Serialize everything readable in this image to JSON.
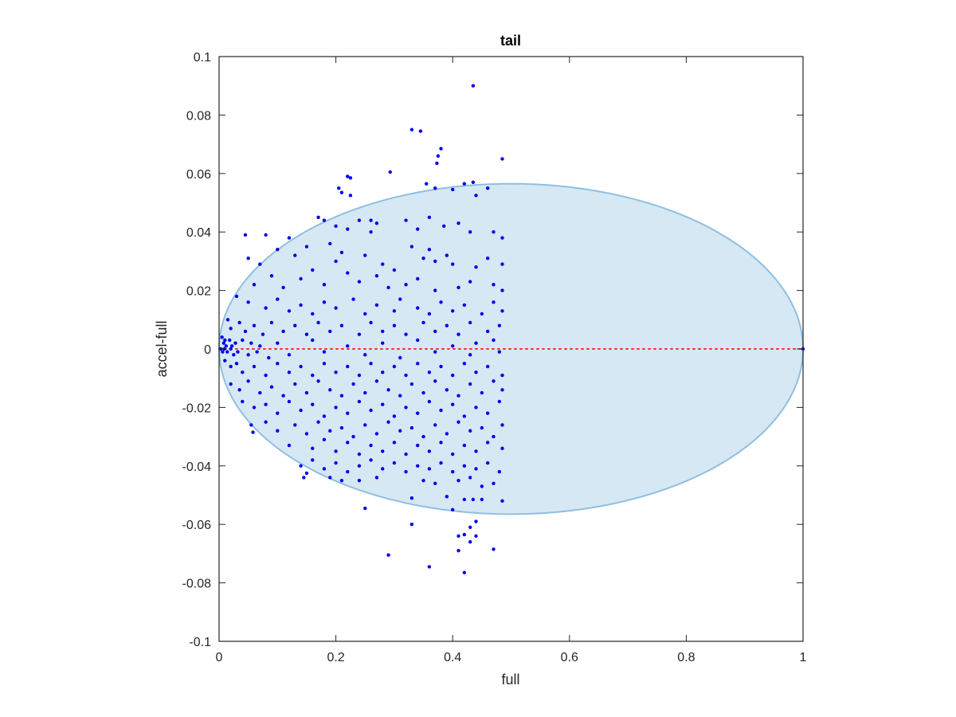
{
  "chart_data": {
    "type": "scatter",
    "title": "tail",
    "xlabel": "full",
    "ylabel": "accel-full",
    "xlim": [
      0,
      1
    ],
    "ylim": [
      -0.1,
      0.1
    ],
    "xticks": [
      0,
      0.2,
      0.4,
      0.6,
      0.8,
      1
    ],
    "xtick_labels": [
      "0",
      "0.2",
      "0.4",
      "0.6",
      "0.8",
      "1"
    ],
    "yticks": [
      -0.1,
      -0.08,
      -0.06,
      -0.04,
      -0.02,
      0,
      0.02,
      0.04,
      0.06,
      0.08,
      0.1
    ],
    "ytick_labels": [
      "-0.1",
      "-0.08",
      "-0.06",
      "-0.04",
      "-0.02",
      "0",
      "0.02",
      "0.04",
      "0.06",
      "0.08",
      "0.1"
    ],
    "grid": false,
    "colors": {
      "points": "#0000ee",
      "ellipse_fill": "#d6e8f4",
      "ellipse_edge": "#8ec0e0",
      "zero_line": "#ff2a2a",
      "axes": "#262626"
    },
    "ellipse": {
      "center": [
        0.5,
        0
      ],
      "x_radius": 0.5,
      "y_radius": 0.0565
    },
    "reference_line": {
      "y": 0,
      "x_range": [
        0,
        1
      ],
      "style": "dotted"
    },
    "points": [
      [
        0.435,
        0.09
      ],
      [
        0.33,
        0.075
      ],
      [
        0.345,
        0.0745
      ],
      [
        0.38,
        0.0685
      ],
      [
        0.375,
        0.066
      ],
      [
        0.373,
        0.0635
      ],
      [
        0.485,
        0.065
      ],
      [
        0.293,
        0.0605
      ],
      [
        0.22,
        0.059
      ],
      [
        0.225,
        0.0585
      ],
      [
        0.205,
        0.055
      ],
      [
        0.21,
        0.0535
      ],
      [
        0.225,
        0.0525
      ],
      [
        0.355,
        0.0565
      ],
      [
        0.42,
        0.0565
      ],
      [
        0.435,
        0.057
      ],
      [
        0.37,
        0.055
      ],
      [
        0.4,
        0.0545
      ],
      [
        0.46,
        0.055
      ],
      [
        0.44,
        0.0525
      ],
      [
        0.17,
        0.045
      ],
      [
        0.18,
        0.044
      ],
      [
        0.24,
        0.044
      ],
      [
        0.26,
        0.044
      ],
      [
        0.27,
        0.043
      ],
      [
        0.2,
        0.042
      ],
      [
        0.22,
        0.041
      ],
      [
        0.26,
        0.04
      ],
      [
        0.32,
        0.044
      ],
      [
        0.34,
        0.041
      ],
      [
        0.36,
        0.045
      ],
      [
        0.385,
        0.042
      ],
      [
        0.41,
        0.043
      ],
      [
        0.43,
        0.04
      ],
      [
        0.47,
        0.04
      ],
      [
        0.485,
        0.038
      ],
      [
        0.045,
        0.039
      ],
      [
        0.08,
        0.039
      ],
      [
        0.12,
        0.038
      ],
      [
        0.15,
        0.035
      ],
      [
        0.1,
        0.034
      ],
      [
        0.19,
        0.036
      ],
      [
        0.21,
        0.033
      ],
      [
        0.25,
        0.032
      ],
      [
        0.05,
        0.031
      ],
      [
        0.07,
        0.029
      ],
      [
        0.13,
        0.032
      ],
      [
        0.16,
        0.027
      ],
      [
        0.2,
        0.03
      ],
      [
        0.28,
        0.029
      ],
      [
        0.3,
        0.027
      ],
      [
        0.35,
        0.031
      ],
      [
        0.37,
        0.03
      ],
      [
        0.4,
        0.029
      ],
      [
        0.44,
        0.028
      ],
      [
        0.46,
        0.031
      ],
      [
        0.485,
        0.029
      ],
      [
        0.39,
        0.032
      ],
      [
        0.36,
        0.034
      ],
      [
        0.33,
        0.035
      ],
      [
        0.06,
        0.022
      ],
      [
        0.09,
        0.025
      ],
      [
        0.11,
        0.021
      ],
      [
        0.14,
        0.024
      ],
      [
        0.18,
        0.022
      ],
      [
        0.22,
        0.026
      ],
      [
        0.24,
        0.023
      ],
      [
        0.27,
        0.025
      ],
      [
        0.29,
        0.021
      ],
      [
        0.32,
        0.022
      ],
      [
        0.34,
        0.024
      ],
      [
        0.37,
        0.02
      ],
      [
        0.41,
        0.021
      ],
      [
        0.43,
        0.023
      ],
      [
        0.47,
        0.022
      ],
      [
        0.485,
        0.02
      ],
      [
        0.03,
        0.018
      ],
      [
        0.05,
        0.016
      ],
      [
        0.08,
        0.014
      ],
      [
        0.1,
        0.017
      ],
      [
        0.12,
        0.013
      ],
      [
        0.14,
        0.015
      ],
      [
        0.16,
        0.012
      ],
      [
        0.18,
        0.016
      ],
      [
        0.2,
        0.014
      ],
      [
        0.23,
        0.017
      ],
      [
        0.25,
        0.012
      ],
      [
        0.27,
        0.015
      ],
      [
        0.3,
        0.013
      ],
      [
        0.31,
        0.017
      ],
      [
        0.34,
        0.014
      ],
      [
        0.36,
        0.012
      ],
      [
        0.38,
        0.016
      ],
      [
        0.4,
        0.013
      ],
      [
        0.42,
        0.015
      ],
      [
        0.45,
        0.012
      ],
      [
        0.47,
        0.016
      ],
      [
        0.485,
        0.013
      ],
      [
        0.015,
        0.01
      ],
      [
        0.02,
        0.007
      ],
      [
        0.035,
        0.009
      ],
      [
        0.045,
        0.006
      ],
      [
        0.06,
        0.008
      ],
      [
        0.075,
        0.005
      ],
      [
        0.09,
        0.009
      ],
      [
        0.11,
        0.006
      ],
      [
        0.13,
        0.008
      ],
      [
        0.15,
        0.005
      ],
      [
        0.17,
        0.009
      ],
      [
        0.19,
        0.006
      ],
      [
        0.21,
        0.008
      ],
      [
        0.24,
        0.005
      ],
      [
        0.26,
        0.009
      ],
      [
        0.28,
        0.006
      ],
      [
        0.3,
        0.008
      ],
      [
        0.32,
        0.005
      ],
      [
        0.35,
        0.009
      ],
      [
        0.37,
        0.006
      ],
      [
        0.39,
        0.008
      ],
      [
        0.41,
        0.005
      ],
      [
        0.43,
        0.009
      ],
      [
        0.46,
        0.006
      ],
      [
        0.48,
        0.008
      ],
      [
        0.005,
        0.004
      ],
      [
        0.008,
        0.002
      ],
      [
        0.01,
        0.003
      ],
      [
        0.012,
        0.001
      ],
      [
        0.018,
        0.003
      ],
      [
        0.022,
        0.001
      ],
      [
        0.028,
        0.002
      ],
      [
        0.04,
        0.003
      ],
      [
        0.055,
        0.002
      ],
      [
        0.07,
        0.001
      ],
      [
        0.1,
        0.002
      ],
      [
        0.16,
        0.003
      ],
      [
        0.22,
        0.001
      ],
      [
        0.28,
        0.002
      ],
      [
        0.34,
        0.003
      ],
      [
        0.4,
        0.001
      ],
      [
        0.44,
        0.002
      ],
      [
        0.47,
        0.003
      ],
      [
        0.003,
        0.0
      ],
      [
        0.006,
        -0.001
      ],
      [
        0.009,
        0.0
      ],
      [
        0.014,
        -0.001
      ],
      [
        0.02,
        0.0
      ],
      [
        0.025,
        -0.002
      ],
      [
        0.032,
        -0.001
      ],
      [
        0.05,
        -0.002
      ],
      [
        0.065,
        -0.001
      ],
      [
        0.085,
        -0.003
      ],
      [
        0.12,
        -0.002
      ],
      [
        0.18,
        -0.001
      ],
      [
        0.25,
        -0.002
      ],
      [
        0.31,
        -0.003
      ],
      [
        0.37,
        -0.001
      ],
      [
        0.43,
        -0.002
      ],
      [
        0.48,
        -0.001
      ],
      [
        0.01,
        -0.004
      ],
      [
        0.02,
        -0.006
      ],
      [
        0.03,
        -0.005
      ],
      [
        0.04,
        -0.008
      ],
      [
        0.06,
        -0.006
      ],
      [
        0.08,
        -0.009
      ],
      [
        0.1,
        -0.005
      ],
      [
        0.12,
        -0.008
      ],
      [
        0.14,
        -0.006
      ],
      [
        0.16,
        -0.009
      ],
      [
        0.18,
        -0.005
      ],
      [
        0.2,
        -0.008
      ],
      [
        0.22,
        -0.006
      ],
      [
        0.24,
        -0.009
      ],
      [
        0.26,
        -0.005
      ],
      [
        0.28,
        -0.008
      ],
      [
        0.3,
        -0.006
      ],
      [
        0.32,
        -0.009
      ],
      [
        0.34,
        -0.005
      ],
      [
        0.36,
        -0.008
      ],
      [
        0.38,
        -0.006
      ],
      [
        0.4,
        -0.009
      ],
      [
        0.42,
        -0.005
      ],
      [
        0.44,
        -0.008
      ],
      [
        0.46,
        -0.006
      ],
      [
        0.485,
        -0.009
      ],
      [
        0.02,
        -0.012
      ],
      [
        0.035,
        -0.014
      ],
      [
        0.05,
        -0.011
      ],
      [
        0.07,
        -0.015
      ],
      [
        0.09,
        -0.013
      ],
      [
        0.11,
        -0.016
      ],
      [
        0.13,
        -0.012
      ],
      [
        0.15,
        -0.015
      ],
      [
        0.17,
        -0.011
      ],
      [
        0.19,
        -0.014
      ],
      [
        0.21,
        -0.016
      ],
      [
        0.23,
        -0.012
      ],
      [
        0.25,
        -0.015
      ],
      [
        0.27,
        -0.011
      ],
      [
        0.29,
        -0.014
      ],
      [
        0.31,
        -0.016
      ],
      [
        0.33,
        -0.012
      ],
      [
        0.35,
        -0.015
      ],
      [
        0.37,
        -0.011
      ],
      [
        0.39,
        -0.014
      ],
      [
        0.41,
        -0.016
      ],
      [
        0.43,
        -0.012
      ],
      [
        0.45,
        -0.015
      ],
      [
        0.47,
        -0.011
      ],
      [
        0.485,
        -0.014
      ],
      [
        0.04,
        -0.018
      ],
      [
        0.06,
        -0.02
      ],
      [
        0.08,
        -0.019
      ],
      [
        0.1,
        -0.022
      ],
      [
        0.12,
        -0.018
      ],
      [
        0.14,
        -0.021
      ],
      [
        0.16,
        -0.019
      ],
      [
        0.18,
        -0.023
      ],
      [
        0.2,
        -0.02
      ],
      [
        0.22,
        -0.022
      ],
      [
        0.24,
        -0.018
      ],
      [
        0.26,
        -0.021
      ],
      [
        0.28,
        -0.019
      ],
      [
        0.3,
        -0.023
      ],
      [
        0.32,
        -0.02
      ],
      [
        0.34,
        -0.022
      ],
      [
        0.36,
        -0.018
      ],
      [
        0.38,
        -0.021
      ],
      [
        0.4,
        -0.019
      ],
      [
        0.42,
        -0.023
      ],
      [
        0.44,
        -0.02
      ],
      [
        0.46,
        -0.022
      ],
      [
        0.48,
        -0.018
      ],
      [
        0.055,
        -0.026
      ],
      [
        0.08,
        -0.025
      ],
      [
        0.1,
        -0.028
      ],
      [
        0.13,
        -0.026
      ],
      [
        0.15,
        -0.029
      ],
      [
        0.17,
        -0.025
      ],
      [
        0.19,
        -0.028
      ],
      [
        0.21,
        -0.027
      ],
      [
        0.23,
        -0.03
      ],
      [
        0.25,
        -0.026
      ],
      [
        0.27,
        -0.029
      ],
      [
        0.29,
        -0.025
      ],
      [
        0.31,
        -0.028
      ],
      [
        0.33,
        -0.027
      ],
      [
        0.35,
        -0.03
      ],
      [
        0.37,
        -0.026
      ],
      [
        0.39,
        -0.029
      ],
      [
        0.41,
        -0.025
      ],
      [
        0.43,
        -0.028
      ],
      [
        0.45,
        -0.027
      ],
      [
        0.47,
        -0.03
      ],
      [
        0.485,
        -0.026
      ],
      [
        0.058,
        -0.0285
      ],
      [
        0.12,
        -0.033
      ],
      [
        0.16,
        -0.034
      ],
      [
        0.18,
        -0.031
      ],
      [
        0.2,
        -0.035
      ],
      [
        0.22,
        -0.032
      ],
      [
        0.24,
        -0.036
      ],
      [
        0.26,
        -0.033
      ],
      [
        0.28,
        -0.035
      ],
      [
        0.3,
        -0.032
      ],
      [
        0.32,
        -0.036
      ],
      [
        0.34,
        -0.033
      ],
      [
        0.36,
        -0.035
      ],
      [
        0.38,
        -0.032
      ],
      [
        0.4,
        -0.036
      ],
      [
        0.42,
        -0.033
      ],
      [
        0.44,
        -0.035
      ],
      [
        0.46,
        -0.032
      ],
      [
        0.485,
        -0.034
      ],
      [
        0.14,
        -0.04
      ],
      [
        0.16,
        -0.038
      ],
      [
        0.18,
        -0.041
      ],
      [
        0.2,
        -0.039
      ],
      [
        0.22,
        -0.042
      ],
      [
        0.24,
        -0.04
      ],
      [
        0.26,
        -0.038
      ],
      [
        0.28,
        -0.041
      ],
      [
        0.3,
        -0.039
      ],
      [
        0.32,
        -0.042
      ],
      [
        0.34,
        -0.04
      ],
      [
        0.36,
        -0.041
      ],
      [
        0.38,
        -0.039
      ],
      [
        0.4,
        -0.042
      ],
      [
        0.42,
        -0.04
      ],
      [
        0.44,
        -0.041
      ],
      [
        0.46,
        -0.039
      ],
      [
        0.48,
        -0.042
      ],
      [
        0.145,
        -0.044
      ],
      [
        0.15,
        -0.0425
      ],
      [
        0.19,
        -0.044
      ],
      [
        0.21,
        -0.045
      ],
      [
        0.24,
        -0.045
      ],
      [
        0.27,
        -0.044
      ],
      [
        0.35,
        -0.045
      ],
      [
        0.37,
        -0.046
      ],
      [
        0.41,
        -0.045
      ],
      [
        0.43,
        -0.044
      ],
      [
        0.45,
        -0.047
      ],
      [
        0.47,
        -0.046
      ],
      [
        0.33,
        -0.051
      ],
      [
        0.39,
        -0.0505
      ],
      [
        0.42,
        -0.0515
      ],
      [
        0.435,
        -0.0515
      ],
      [
        0.45,
        -0.0515
      ],
      [
        0.485,
        -0.052
      ],
      [
        0.4,
        -0.055
      ],
      [
        0.25,
        -0.0545
      ],
      [
        0.33,
        -0.06
      ],
      [
        0.44,
        -0.059
      ],
      [
        0.43,
        -0.061
      ],
      [
        0.42,
        -0.0635
      ],
      [
        0.44,
        -0.064
      ],
      [
        0.43,
        -0.066
      ],
      [
        0.41,
        -0.064
      ],
      [
        0.41,
        -0.069
      ],
      [
        0.47,
        -0.0685
      ],
      [
        0.29,
        -0.0705
      ],
      [
        0.36,
        -0.0745
      ],
      [
        0.42,
        -0.0765
      ],
      [
        1.0,
        0.0
      ]
    ]
  }
}
